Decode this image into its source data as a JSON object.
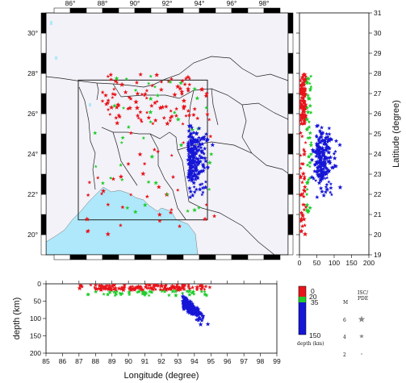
{
  "colors": {
    "shallow": "#e8141a",
    "intermediate": "#1fcc2a",
    "deep": "#1616d6",
    "sea": "#aee8fa",
    "land": "#f2f2f8",
    "bay": "#aee8fa"
  },
  "map": {
    "lon_ticks": [
      86,
      88,
      90,
      92,
      94,
      96,
      98
    ],
    "lon_tick_labels": [
      "86°",
      "88°",
      "90°",
      "92°",
      "94°",
      "96°",
      "98°"
    ],
    "lat_ticks": [
      20,
      22,
      24,
      26,
      28,
      30
    ],
    "lat_tick_labels": [
      "20°",
      "22°",
      "24°",
      "26°",
      "28°",
      "30°"
    ],
    "lon_range": [
      84.5,
      99.5
    ],
    "lat_range": [
      19,
      31
    ],
    "study_box": {
      "lon": [
        87,
        95
      ],
      "lat": [
        20,
        28
      ]
    }
  },
  "lat_panel": {
    "y_ticks": [
      "19",
      "20",
      "21",
      "22",
      "23",
      "24",
      "25",
      "26",
      "27",
      "28",
      "29",
      "30",
      "31"
    ],
    "y_label": "Latitude (degree)",
    "x_ticks": [
      "0",
      "50",
      "100",
      "150",
      "200"
    ],
    "x_range": [
      0,
      200
    ],
    "y_range": [
      19,
      31
    ]
  },
  "depth_panel": {
    "y_ticks": [
      "0",
      "50",
      "100",
      "150",
      "200"
    ],
    "y_label": "depth (km)",
    "x_ticks": [
      "85",
      "86",
      "87",
      "88",
      "89",
      "90",
      "91",
      "92",
      "93",
      "94",
      "95",
      "96",
      "97",
      "98",
      "99"
    ],
    "x_label": "Longitude (degree)",
    "x_range": [
      85,
      99
    ],
    "y_range": [
      0,
      200
    ]
  },
  "legend": {
    "depth_scale_labels": [
      "0",
      "20",
      "35",
      "150"
    ],
    "depth_caption": "depth (km)",
    "magnitude_header": "M",
    "catalog_header": "ISC/\nPDE",
    "magnitudes": [
      "6",
      "4",
      "2"
    ]
  },
  "chart_data": {
    "type": "scatter",
    "series": [
      {
        "depth_class": "0-20 km",
        "color": "red",
        "count": 140
      },
      {
        "depth_class": "20-35 km",
        "color": "green",
        "count": 45
      },
      {
        "depth_class": "35-150 km",
        "color": "blue",
        "count": 230
      }
    ],
    "note_region": "lon 87-95 E, lat 20-28 N"
  }
}
